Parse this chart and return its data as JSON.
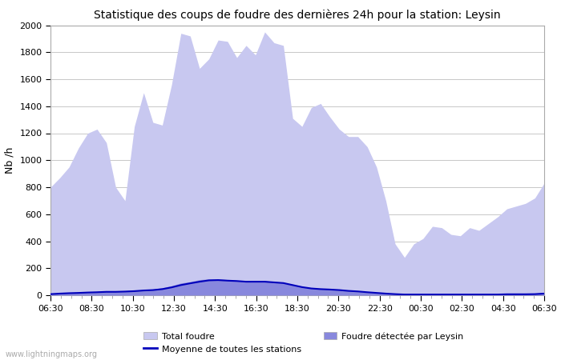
{
  "title": "Statistique des coups de foudre des dernières 24h pour la station: Leysin",
  "ylabel": "Nb /h",
  "ylim": [
    0,
    2000
  ],
  "yticks": [
    0,
    200,
    400,
    600,
    800,
    1000,
    1200,
    1400,
    1600,
    1800,
    2000
  ],
  "xtick_labels": [
    "06:30",
    "08:30",
    "10:30",
    "12:30",
    "14:30",
    "16:30",
    "18:30",
    "20:30",
    "22:30",
    "00:30",
    "02:30",
    "04:30",
    "06:30"
  ],
  "bg_color": "#ffffff",
  "plot_bg_color": "#ffffff",
  "grid_color": "#c8c8c8",
  "fill_total_color": "#c8c8f0",
  "fill_leysin_color": "#8888dd",
  "line_moyenne_color": "#0000bb",
  "watermark": "www.lightningmaps.org",
  "total_foudre": [
    800,
    870,
    950,
    1090,
    1200,
    1230,
    1130,
    800,
    700,
    1250,
    1500,
    1280,
    1260,
    1560,
    1940,
    1920,
    1680,
    1750,
    1890,
    1880,
    1760,
    1850,
    1780,
    1950,
    1870,
    1850,
    1310,
    1250,
    1390,
    1420,
    1320,
    1230,
    1175,
    1175,
    1100,
    950,
    700,
    380,
    280,
    380,
    420,
    510,
    500,
    450,
    440,
    500,
    480,
    530,
    580,
    640,
    660,
    680,
    720,
    830
  ],
  "leysin_foudre": [
    10,
    15,
    18,
    20,
    25,
    28,
    30,
    30,
    32,
    35,
    40,
    45,
    55,
    70,
    90,
    100,
    115,
    120,
    120,
    115,
    110,
    105,
    108,
    108,
    100,
    95,
    80,
    65,
    55,
    50,
    45,
    40,
    35,
    30,
    25,
    20,
    15,
    12,
    10,
    10,
    10,
    10,
    10,
    10,
    10,
    10,
    10,
    10,
    10,
    12,
    12,
    12,
    15,
    20
  ],
  "moyenne": [
    8,
    12,
    15,
    17,
    20,
    22,
    25,
    25,
    27,
    30,
    35,
    38,
    45,
    58,
    75,
    88,
    100,
    110,
    112,
    108,
    105,
    100,
    100,
    100,
    95,
    90,
    75,
    60,
    50,
    45,
    42,
    38,
    32,
    28,
    22,
    17,
    12,
    8,
    5,
    5,
    5,
    5,
    5,
    5,
    5,
    5,
    5,
    5,
    5,
    7,
    7,
    7,
    8,
    12
  ]
}
